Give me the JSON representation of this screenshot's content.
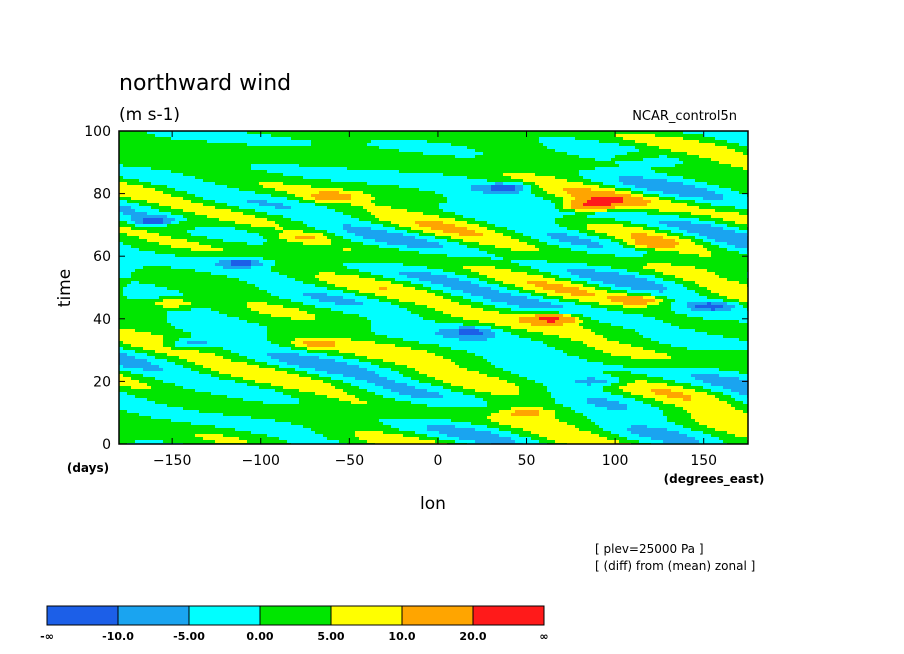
{
  "chart_data": {
    "type": "heatmap",
    "title": "northward wind",
    "subtitle": "(m s-1)",
    "dataset": "NCAR_control5n",
    "xlabel": "lon",
    "ylabel": "time",
    "x_unit": "(degrees_east)",
    "y_unit": "(days)",
    "xlim": [
      -180,
      175
    ],
    "ylim": [
      0,
      100
    ],
    "x_ticks": [
      -150,
      -100,
      -50,
      0,
      50,
      100,
      150
    ],
    "y_ticks": [
      0,
      20,
      40,
      60,
      80,
      100
    ],
    "notes": [
      "[ plev=25000 Pa ]",
      "[ (diff) from (mean) zonal ]"
    ],
    "colorbar": {
      "labels": [
        "-∞",
        "-10.0",
        "-5.00",
        "0.00",
        "5.00",
        "10.0",
        "20.0",
        "∞"
      ],
      "colors": [
        "#1c5fe8",
        "#1aa4f0",
        "#00ffff",
        "#00e600",
        "#ffff00",
        "#ffa500",
        "#ff1a1a"
      ]
    },
    "features": [
      {
        "lon": -150,
        "time": 45,
        "value": 12
      },
      {
        "lon": -145,
        "time": 70,
        "value": 11
      },
      {
        "lon": -75,
        "time": 66,
        "value": 9
      },
      {
        "lon": -70,
        "time": 32,
        "value": 9
      },
      {
        "lon": -60,
        "time": 79,
        "value": 11
      },
      {
        "lon": 65,
        "time": 40,
        "value": 22
      },
      {
        "lon": 85,
        "time": 76,
        "value": 21
      },
      {
        "lon": 95,
        "time": 78,
        "value": 14
      },
      {
        "lon": 115,
        "time": 46,
        "value": 13
      },
      {
        "lon": 120,
        "time": 64,
        "value": 10
      },
      {
        "lon": 110,
        "time": 92,
        "value": 8
      },
      {
        "lon": 50,
        "time": 10,
        "value": 9
      },
      {
        "lon": -110,
        "time": 58,
        "value": -12
      },
      {
        "lon": -160,
        "time": 71,
        "value": -11
      },
      {
        "lon": 40,
        "time": 82,
        "value": -12
      },
      {
        "lon": 155,
        "time": 44,
        "value": -11
      },
      {
        "lon": -140,
        "time": 32,
        "value": -10
      },
      {
        "lon": 20,
        "time": 36,
        "value": -9
      },
      {
        "lon": 90,
        "time": 20,
        "value": -9
      }
    ]
  }
}
